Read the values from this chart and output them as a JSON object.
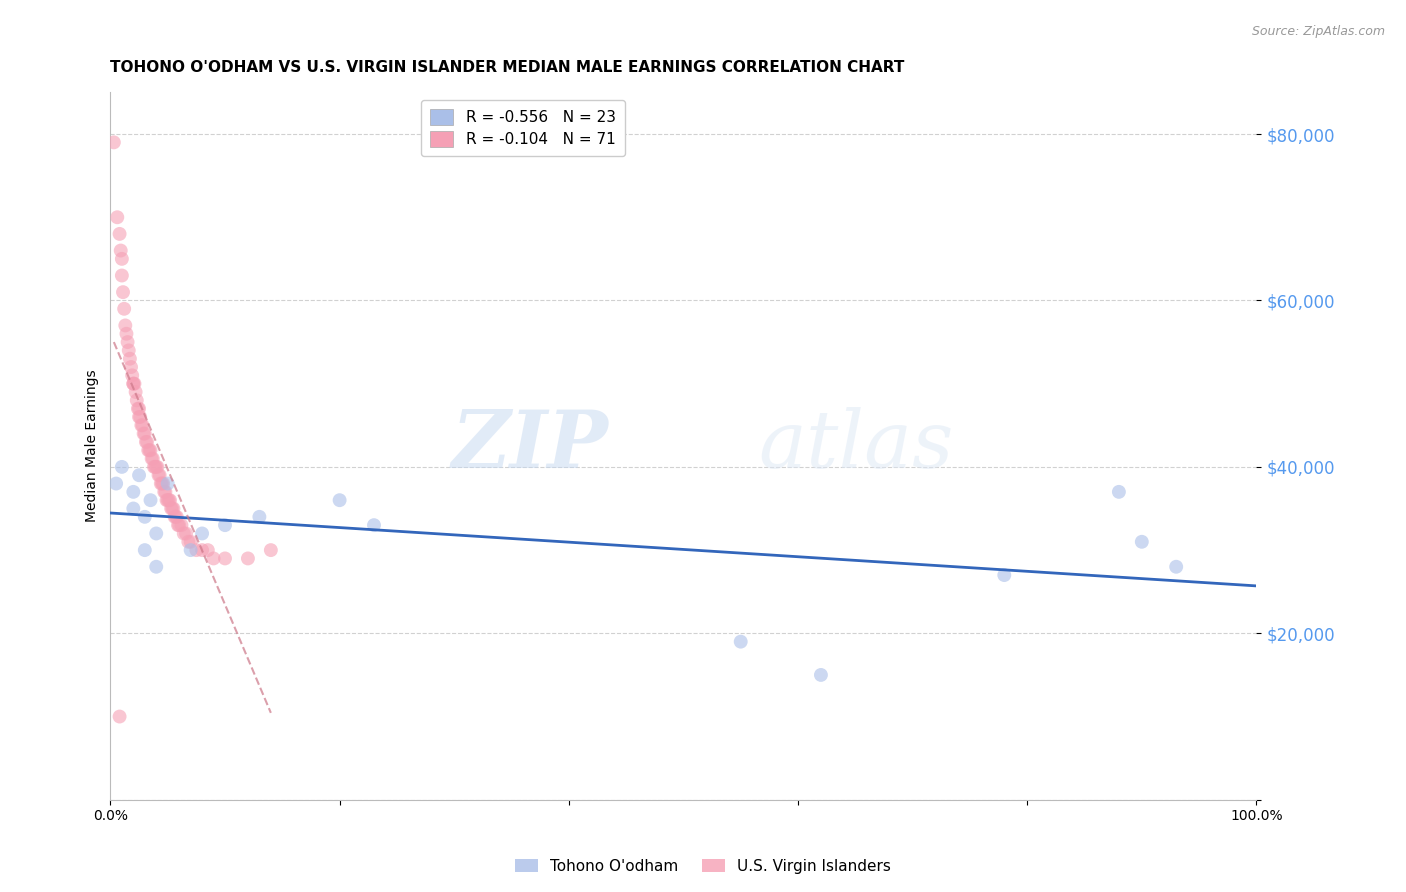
{
  "title": "TOHONO O'ODHAM VS U.S. VIRGIN ISLANDER MEDIAN MALE EARNINGS CORRELATION CHART",
  "source": "Source: ZipAtlas.com",
  "ylabel": "Median Male Earnings",
  "yticks": [
    0,
    20000,
    40000,
    60000,
    80000
  ],
  "ytick_labels": [
    "",
    "$20,000",
    "$40,000",
    "$60,000",
    "$80,000"
  ],
  "ylim": [
    0,
    85000
  ],
  "xlim": [
    0,
    1.0
  ],
  "legend_blue_r": "R = -0.556",
  "legend_blue_n": "N = 23",
  "legend_pink_r": "R = -0.104",
  "legend_pink_n": "N = 71",
  "legend_label_blue": "Tohono O'odham",
  "legend_label_pink": "U.S. Virgin Islanders",
  "background_color": "#ffffff",
  "grid_color": "#cccccc",
  "blue_color": "#aabfe8",
  "pink_color": "#f5a0b5",
  "blue_line_color": "#3366bb",
  "pink_line_color": "#cc7788",
  "blue_scatter_x": [
    0.005,
    0.01,
    0.02,
    0.02,
    0.025,
    0.03,
    0.03,
    0.035,
    0.04,
    0.04,
    0.05,
    0.07,
    0.08,
    0.1,
    0.13,
    0.2,
    0.23,
    0.55,
    0.62,
    0.78,
    0.88,
    0.9,
    0.93
  ],
  "blue_scatter_y": [
    38000,
    40000,
    37000,
    35000,
    39000,
    34000,
    30000,
    36000,
    32000,
    28000,
    38000,
    30000,
    32000,
    33000,
    34000,
    36000,
    33000,
    19000,
    15000,
    27000,
    37000,
    31000,
    28000
  ],
  "pink_scatter_x": [
    0.003,
    0.006,
    0.008,
    0.009,
    0.01,
    0.01,
    0.011,
    0.012,
    0.013,
    0.014,
    0.015,
    0.016,
    0.017,
    0.018,
    0.019,
    0.02,
    0.02,
    0.021,
    0.022,
    0.023,
    0.024,
    0.025,
    0.025,
    0.026,
    0.027,
    0.028,
    0.029,
    0.03,
    0.031,
    0.032,
    0.033,
    0.034,
    0.035,
    0.036,
    0.037,
    0.038,
    0.039,
    0.04,
    0.041,
    0.042,
    0.043,
    0.044,
    0.045,
    0.046,
    0.047,
    0.048,
    0.049,
    0.05,
    0.051,
    0.052,
    0.053,
    0.054,
    0.055,
    0.056,
    0.057,
    0.058,
    0.059,
    0.06,
    0.062,
    0.064,
    0.066,
    0.068,
    0.07,
    0.075,
    0.08,
    0.085,
    0.09,
    0.1,
    0.12,
    0.14,
    0.008
  ],
  "pink_scatter_y": [
    79000,
    70000,
    68000,
    66000,
    65000,
    63000,
    61000,
    59000,
    57000,
    56000,
    55000,
    54000,
    53000,
    52000,
    51000,
    50000,
    50000,
    50000,
    49000,
    48000,
    47000,
    47000,
    46000,
    46000,
    45000,
    45000,
    44000,
    44000,
    43000,
    43000,
    42000,
    42000,
    42000,
    41000,
    41000,
    40000,
    40000,
    40000,
    40000,
    39000,
    39000,
    38000,
    38000,
    38000,
    37000,
    37000,
    36000,
    36000,
    36000,
    36000,
    35000,
    35000,
    35000,
    34000,
    34000,
    34000,
    33000,
    33000,
    33000,
    32000,
    32000,
    31000,
    31000,
    30000,
    30000,
    30000,
    29000,
    29000,
    29000,
    30000,
    10000
  ],
  "watermark_zip": "ZIP",
  "watermark_atlas": "atlas",
  "title_fontsize": 11,
  "axis_label_fontsize": 10,
  "tick_fontsize": 10,
  "source_fontsize": 9,
  "xtick_positions": [
    0.0,
    0.2,
    0.4,
    0.6,
    0.8,
    1.0
  ],
  "xtick_labels_show": [
    "0.0%",
    "",
    "",
    "",
    "",
    "100.0%"
  ]
}
